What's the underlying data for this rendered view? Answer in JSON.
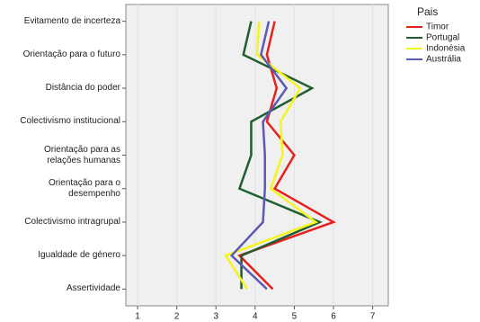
{
  "chart_data": {
    "type": "line",
    "categories": [
      "Evitamento de incerteza",
      "Orientação para o futuro",
      "Distância do poder",
      "Colectivismo institucional",
      "Orientação para as relações humanas",
      "Orientação para o desempenho",
      "Colectivismo intragrupal",
      "Igualdade de género",
      "Assertividade"
    ],
    "series": [
      {
        "name": "Timor",
        "color": "#e8201c",
        "values": [
          4.5,
          4.3,
          4.55,
          4.3,
          5.0,
          4.5,
          6.0,
          3.6,
          4.45
        ]
      },
      {
        "name": "Portugal",
        "color": "#1e5e30",
        "values": [
          3.9,
          3.7,
          5.45,
          3.9,
          3.9,
          3.6,
          5.65,
          3.65,
          3.65
        ]
      },
      {
        "name": "Indonésia",
        "color": "#f5f51e",
        "values": [
          4.1,
          4.05,
          5.15,
          4.65,
          4.7,
          4.4,
          5.55,
          3.25,
          3.8
        ]
      },
      {
        "name": "Austrália",
        "color": "#5a5ab4",
        "values": [
          4.35,
          4.15,
          4.8,
          4.2,
          4.25,
          4.25,
          4.2,
          3.4,
          4.3
        ]
      }
    ],
    "xlim": [
      0.7,
      7.4
    ],
    "xticks": [
      1,
      2,
      3,
      4,
      5,
      6,
      7
    ],
    "legend_title": "Pais",
    "legend": "right",
    "grid": true
  }
}
